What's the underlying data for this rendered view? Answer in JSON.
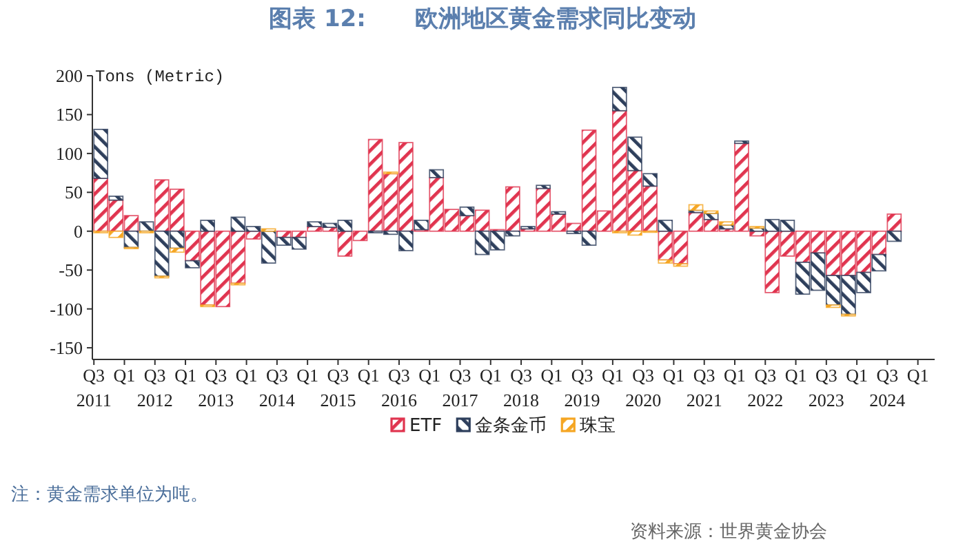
{
  "chart_data": {
    "type": "bar",
    "title": "图表 12:      欧洲地区黄金需求同比变动",
    "ylabel": "Tons (Metric)",
    "categories": [
      "Q3\n2011",
      null,
      "Q1",
      null,
      "Q3\n2012",
      null,
      "Q1",
      null,
      "Q3\n2013",
      null,
      "Q1",
      null,
      "Q3\n2014",
      null,
      "Q1",
      null,
      "Q3\n2015",
      null,
      "Q1",
      null,
      "Q3\n2016",
      null,
      "Q1",
      null,
      "Q3\n2017",
      null,
      "Q1",
      null,
      "Q3\n2018",
      null,
      "Q1",
      null,
      "Q3\n2019",
      null,
      "Q1",
      null,
      "Q3\n2020",
      null,
      "Q1",
      null,
      "Q3\n2021",
      null,
      "Q1",
      null,
      "Q3\n2022",
      null,
      "Q1",
      null,
      "Q3\n2023",
      null,
      "Q1",
      null,
      "Q3\n2024",
      null,
      "Q1"
    ],
    "stacked": true,
    "series": [
      {
        "name": "ETF",
        "color": "#e0344f",
        "values": [
          68,
          40,
          20,
          null,
          66,
          54,
          -38,
          -95,
          -97,
          -67,
          -10,
          null,
          -8,
          -8,
          6,
          5,
          -32,
          -12,
          118,
          74,
          114,
          2,
          69,
          28,
          20,
          27,
          2,
          57,
          3,
          55,
          22,
          10,
          130,
          26,
          155,
          78,
          58,
          -37,
          -42,
          24,
          15,
          3,
          113,
          -6,
          -79,
          -32,
          -40,
          -28,
          -57,
          -57,
          -53,
          -30,
          22,
          null,
          null
        ]
      },
      {
        "name": "金条金币",
        "color": "#2e3f5c",
        "values": [
          63,
          5,
          -21,
          12,
          -58,
          -22,
          -9,
          14,
          0,
          18,
          6,
          -41,
          -10,
          -15,
          6,
          5,
          14,
          0,
          -2,
          -4,
          -25,
          12,
          10,
          0,
          11,
          -30,
          -24,
          -6,
          3,
          4,
          3,
          -3,
          -18,
          0,
          30,
          43,
          16,
          14,
          0,
          3,
          8,
          5,
          3,
          4,
          15,
          14,
          -41,
          -48,
          -38,
          -50,
          -26,
          -21,
          -13,
          null,
          null
        ]
      },
      {
        "name": "珠宝",
        "color": "#f5a623",
        "values": [
          -2,
          -8,
          -1,
          -2,
          -2,
          -5,
          0,
          -2,
          0,
          -2,
          0,
          3,
          0,
          0,
          0,
          0,
          0,
          0,
          0,
          2,
          0,
          0,
          0,
          0,
          0,
          0,
          0,
          0,
          0,
          0,
          0,
          0,
          0,
          0,
          -2,
          -5,
          -1,
          -4,
          -3,
          7,
          3,
          4,
          0,
          2,
          0,
          0,
          0,
          0,
          -3,
          -2,
          0,
          0,
          0,
          null,
          null
        ]
      }
    ],
    "ylim": [
      -165,
      200
    ],
    "yticks": [
      -150,
      -100,
      -50,
      0,
      50,
      100,
      150,
      200
    ],
    "legend": "bottom",
    "annotations": [
      "注：黄金需求单位为吨。",
      "资料来源：世界黄金协会"
    ]
  }
}
